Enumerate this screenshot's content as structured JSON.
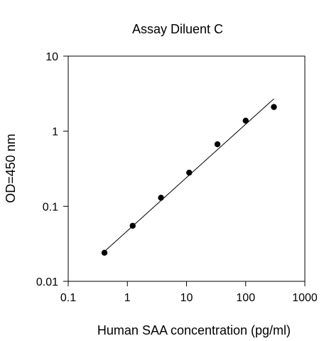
{
  "chart_data": {
    "type": "scatter",
    "title": "Assay Diluent C",
    "xlabel": "Human SAA concentration (pg/ml)",
    "ylabel": "OD=450 nm",
    "x_scale": "log",
    "y_scale": "log",
    "xlim": [
      0.1,
      1000
    ],
    "ylim": [
      0.01,
      10
    ],
    "x_ticks": [
      "0.1",
      "1",
      "10",
      "100",
      "1000"
    ],
    "y_ticks": [
      "0.01",
      "0.1",
      "1",
      "10"
    ],
    "grid": false,
    "legend": "none",
    "series": [
      {
        "x": [
          0.41,
          1.23,
          3.7,
          11.1,
          33.3,
          100,
          300
        ],
        "y": [
          0.024,
          0.055,
          0.13,
          0.28,
          0.67,
          1.38,
          2.1
        ]
      }
    ],
    "fit_line": {
      "x": [
        0.41,
        300
      ],
      "y": [
        0.025,
        2.7
      ]
    },
    "colors": {
      "axis": "#000000",
      "marker": "#000000",
      "line": "#000000"
    }
  }
}
